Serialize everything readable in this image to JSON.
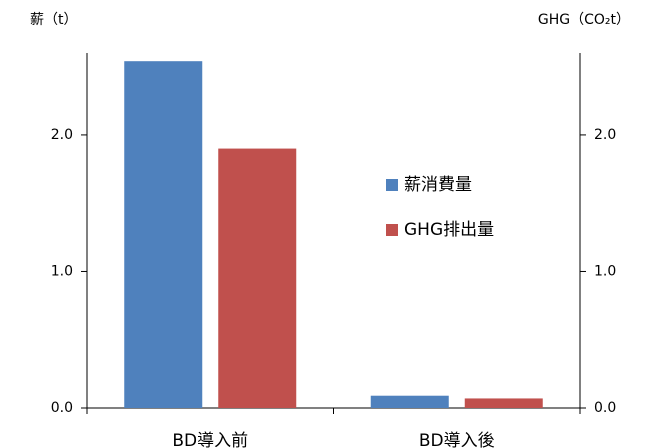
{
  "chart_data": {
    "type": "bar",
    "y_label": "薪（t）",
    "y2_label": "GHG（CO₂t）",
    "categories": [
      "BD導入前",
      "BD導入後"
    ],
    "series": [
      {
        "name": "薪消費量",
        "color": "#4f81bd",
        "values": [
          2.54,
          0.09
        ]
      },
      {
        "name": "GHG排出量",
        "color": "#c0504d",
        "values": [
          1.9,
          0.07
        ],
        "axis": "y2"
      }
    ],
    "ylim": [
      0,
      2.6
    ],
    "yticks": [
      {
        "value": 0,
        "label": "0.0"
      },
      {
        "value": 1,
        "label": "1.0"
      },
      {
        "value": 2,
        "label": "2.0"
      }
    ],
    "y2lim": [
      0,
      2.6
    ],
    "y2ticks": [
      {
        "value": 0,
        "label": "0.0"
      },
      {
        "value": 1,
        "label": "1.0"
      },
      {
        "value": 2,
        "label": "2.0"
      }
    ],
    "legend": "right"
  }
}
